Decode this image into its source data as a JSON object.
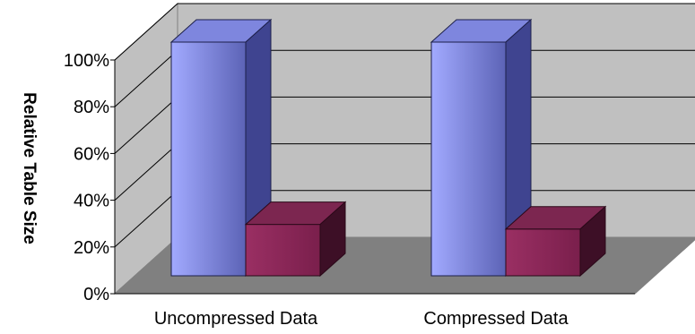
{
  "chart_data": {
    "type": "bar",
    "style": "3d-clustered-column",
    "title": "",
    "xlabel": "",
    "ylabel": "Relative Table Size",
    "categories": [
      "Uncompressed Data",
      "Compressed Data"
    ],
    "series": [
      {
        "color": "#9aa3f5",
        "values": [
          1.0,
          1.0
        ]
      },
      {
        "color": "#8e2a5c",
        "values": [
          0.22,
          0.2
        ]
      }
    ],
    "ylim": [
      0,
      1
    ],
    "yticks": [
      0,
      0.2,
      0.4,
      0.6,
      0.8,
      1.0
    ],
    "ytick_labels": [
      "0%",
      "20%",
      "40%",
      "60%",
      "80%",
      "100%"
    ],
    "grid": true,
    "legend": "none",
    "colors": {
      "back_wall": "#c0c0c0",
      "side_wall": "#c0c0c0",
      "floor": "#808080",
      "gridline": "#000000"
    }
  }
}
